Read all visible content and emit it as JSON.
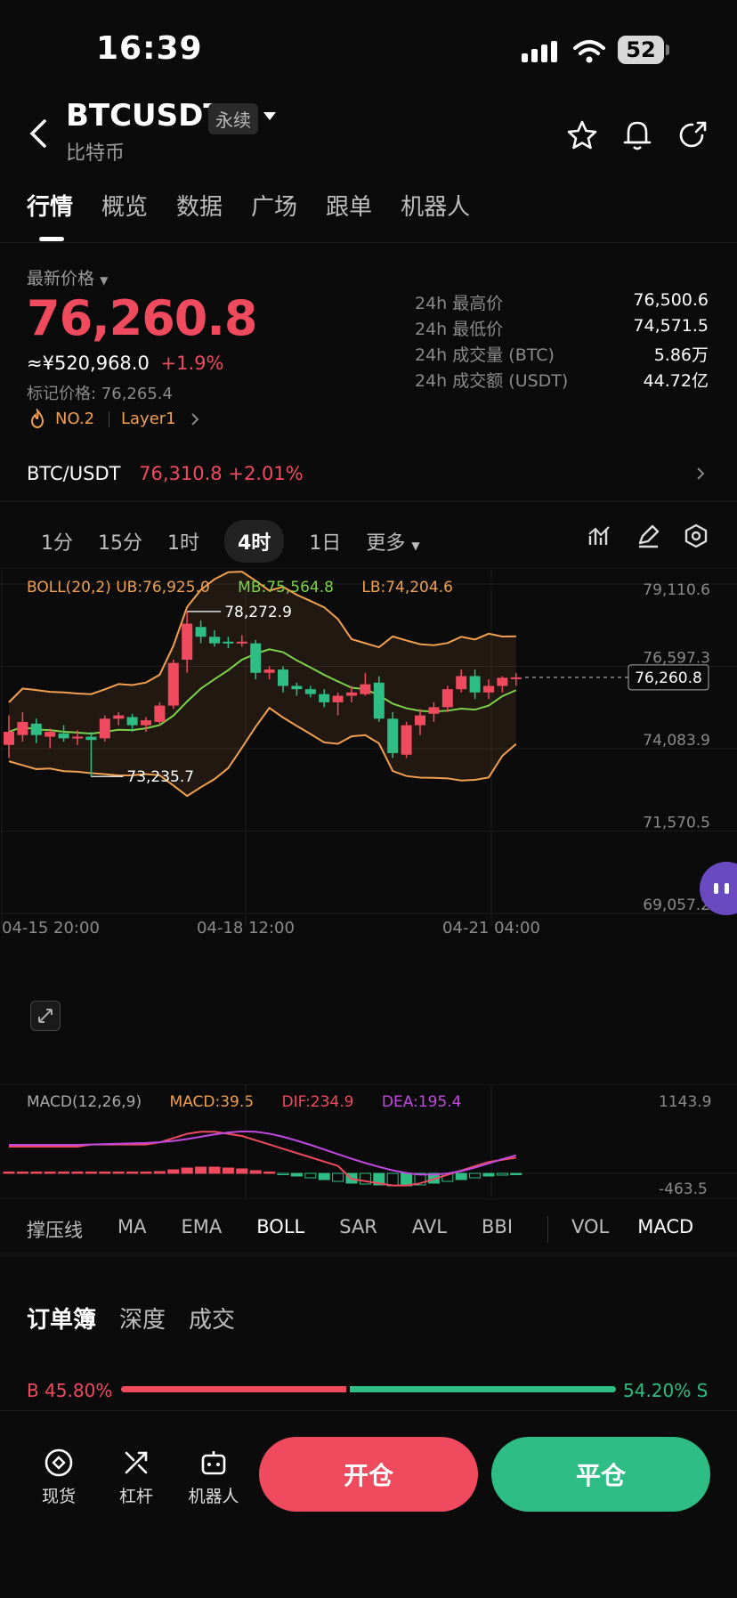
{
  "status_bar": {
    "time": "16:39",
    "battery": "52"
  },
  "header": {
    "symbol": "BTCUSDT",
    "tag": "永续",
    "subtitle": "比特币"
  },
  "tabs": [
    "行情",
    "概览",
    "数据",
    "广场",
    "跟单",
    "机器人"
  ],
  "price_panel": {
    "label": "最新价格",
    "price": "76,260.8",
    "cny": "≈¥520,968.0",
    "change": "+1.9%",
    "mark_price": "标记价格: 76,265.4",
    "rank": "NO.2",
    "category": "Layer1",
    "stats": [
      {
        "label": "24h 最高价",
        "value": "76,500.6"
      },
      {
        "label": "24h 最低价",
        "value": "74,571.5"
      },
      {
        "label": "24h 成交量 (BTC)",
        "value": "5.86万"
      },
      {
        "label": "24h 成交额 (USDT)",
        "value": "44.72亿"
      }
    ]
  },
  "spot_bar": {
    "pair": "BTC/USDT",
    "price": "76,310.8",
    "change": "+2.01%"
  },
  "timeframes": {
    "items": [
      "1分",
      "15分",
      "1时",
      "4时",
      "1日"
    ],
    "active": "4时",
    "more": "更多"
  },
  "chart_data": {
    "type": "candlestick",
    "legend": {
      "boll": "BOLL(20,2)",
      "ub": "UB:76,925.0",
      "mb": "MB:75,564.8",
      "lb": "LB:74,204.6"
    },
    "y_ticks": [
      "79,110.6",
      "76,597.3",
      "74,083.9",
      "71,570.5",
      "69,057.2"
    ],
    "x_ticks": [
      "04-15 20:00",
      "04-18 12:00",
      "04-21 04:00"
    ],
    "current_price": "76,260.8",
    "high_label": "78,272.9",
    "low_label": "73,235.7",
    "ylim": [
      69057.2,
      79110.6
    ],
    "candles": [
      [
        74200,
        75100,
        73800,
        74600
      ],
      [
        74500,
        75200,
        74300,
        74900
      ],
      [
        74850,
        75000,
        74250,
        74500
      ],
      [
        74450,
        74700,
        74100,
        74600
      ],
      [
        74550,
        74800,
        74300,
        74400
      ],
      [
        74400,
        74650,
        74200,
        74450
      ],
      [
        74450,
        74600,
        73235.7,
        74350
      ],
      [
        74400,
        75100,
        74300,
        75000
      ],
      [
        75000,
        75200,
        74800,
        75100
      ],
      [
        75050,
        75150,
        74600,
        74800
      ],
      [
        74800,
        75050,
        74600,
        74950
      ],
      [
        74900,
        75500,
        74800,
        75400
      ],
      [
        75400,
        76800,
        75300,
        76700
      ],
      [
        76800,
        78272.9,
        76400,
        77900
      ],
      [
        77800,
        78000,
        77300,
        77500
      ],
      [
        77500,
        77700,
        77200,
        77300
      ],
      [
        77350,
        77500,
        77150,
        77300
      ],
      [
        77300,
        77550,
        77200,
        77350
      ],
      [
        77300,
        77400,
        76200,
        76400
      ],
      [
        76400,
        76600,
        76200,
        76500
      ],
      [
        76500,
        76600,
        75800,
        76000
      ],
      [
        76000,
        76100,
        75700,
        75900
      ],
      [
        75900,
        76000,
        75650,
        75750
      ],
      [
        75750,
        75900,
        75350,
        75500
      ],
      [
        75500,
        75800,
        75100,
        75700
      ],
      [
        75700,
        76000,
        75500,
        75800
      ],
      [
        75750,
        76400,
        75700,
        76050
      ],
      [
        76100,
        76300,
        74900,
        75000
      ],
      [
        75000,
        75200,
        73800,
        73950
      ],
      [
        73900,
        74900,
        73800,
        74800
      ],
      [
        74800,
        75300,
        74500,
        75100
      ],
      [
        75150,
        75500,
        74900,
        75350
      ],
      [
        75350,
        76000,
        75200,
        75900
      ],
      [
        75900,
        76500,
        75800,
        76300
      ],
      [
        76300,
        76500,
        75600,
        75800
      ],
      [
        75800,
        76200,
        75600,
        76000
      ],
      [
        76000,
        76300,
        75800,
        76250
      ],
      [
        76250,
        76400,
        76000,
        76260.8
      ]
    ],
    "macd": {
      "label": "MACD(12,26,9)",
      "macd": "MACD:39.5",
      "dif": "DIF:234.9",
      "dea": "DEA:195.4",
      "y_top": "1143.9",
      "y_bottom": "-463.5"
    }
  },
  "indicators": {
    "items": [
      "撑压线",
      "MA",
      "EMA",
      "BOLL",
      "SAR",
      "AVL",
      "BBI",
      "VOL",
      "MACD"
    ]
  },
  "orderbook": {
    "tabs": [
      "订单簿",
      "深度",
      "成交"
    ],
    "buy_pct": "B 45.80%",
    "sell_pct": "54.20% S",
    "buy_ratio": 0.458
  },
  "bottom_nav": {
    "spot": "现货",
    "leverage": "杠杆",
    "robot": "机器人",
    "open": "开仓",
    "close": "平仓"
  },
  "colors": {
    "up": "#f04a5f",
    "down": "#2ebd85",
    "boll": "#f0a050",
    "mb": "#7cd24a"
  }
}
